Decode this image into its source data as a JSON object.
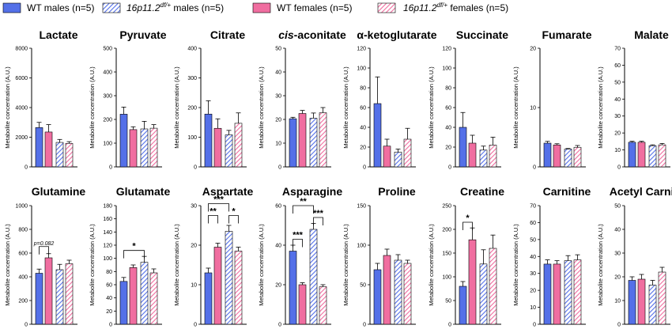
{
  "legend": [
    {
      "label": "WT males (n=5)",
      "italic_part": "",
      "suffix": "",
      "color": "#5470e8",
      "pattern": "solid"
    },
    {
      "label": "16p11.2",
      "sup": "df/+",
      "suffix": " males (n=5)",
      "color": "#5470e8",
      "pattern": "hatch"
    },
    {
      "label": "WT females (n=5)",
      "italic_part": "",
      "suffix": "",
      "color": "#f06ea0",
      "pattern": "solid"
    },
    {
      "label": "16p11.2",
      "sup": "df/+",
      "suffix": " females (n=5)",
      "color": "#f06ea0",
      "pattern": "hatch"
    }
  ],
  "colors": {
    "male": "#5470e8",
    "female": "#f06ea0"
  },
  "ylabel": "Metabolite concentration (A.U.)",
  "chart_data": [
    {
      "type": "bar",
      "title": "Lactate",
      "ylim": [
        0,
        8000
      ],
      "ticks": [
        0,
        2000,
        4000,
        6000,
        8000
      ],
      "values": [
        2650,
        2350,
        1650,
        1580
      ],
      "errors": [
        350,
        500,
        200,
        120
      ],
      "sig": []
    },
    {
      "type": "bar",
      "title": "Pyruvate",
      "ylim": [
        0,
        500
      ],
      "ticks": [
        0,
        100,
        200,
        300,
        400,
        500
      ],
      "values": [
        222,
        157,
        160,
        163
      ],
      "errors": [
        30,
        12,
        32,
        15
      ],
      "sig": []
    },
    {
      "type": "bar",
      "title": "Citrate",
      "ylim": [
        0,
        400
      ],
      "ticks": [
        0,
        100,
        200,
        300,
        400
      ],
      "values": [
        178,
        130,
        108,
        147
      ],
      "errors": [
        45,
        32,
        15,
        35
      ],
      "sig": []
    },
    {
      "type": "bar",
      "title": "cis-aconitate",
      "title_italic": "cis",
      "title_rest": "-aconitate",
      "ylim": [
        0,
        50
      ],
      "ticks": [
        0,
        10,
        20,
        30,
        40,
        50
      ],
      "values": [
        20.3,
        22.5,
        20.5,
        22.8
      ],
      "errors": [
        0.6,
        1.3,
        2.2,
        2.2
      ],
      "sig": []
    },
    {
      "type": "bar",
      "title": "α-ketoglutarate",
      "ylim": [
        0,
        120
      ],
      "ticks": [
        0,
        20,
        40,
        60,
        80,
        100,
        120
      ],
      "values": [
        64,
        21,
        15,
        28
      ],
      "errors": [
        27,
        7,
        3,
        11
      ],
      "sig": []
    },
    {
      "type": "bar",
      "title": "Succinate",
      "ylim": [
        0,
        120
      ],
      "ticks": [
        0,
        20,
        40,
        60,
        80,
        100,
        120
      ],
      "values": [
        40,
        24,
        17,
        22
      ],
      "errors": [
        15,
        8,
        4,
        8
      ],
      "sig": []
    },
    {
      "type": "bar",
      "title": "Fumarate",
      "ylim": [
        0,
        20
      ],
      "ticks": [
        0,
        10,
        20
      ],
      "values": [
        4.0,
        3.7,
        3.0,
        3.3
      ],
      "errors": [
        0.3,
        0.2,
        0.1,
        0.3
      ],
      "sig": []
    },
    {
      "type": "bar",
      "title": "Malate",
      "ylim": [
        0,
        70
      ],
      "ticks": [
        0,
        10,
        20,
        30,
        40,
        50,
        60,
        70
      ],
      "values": [
        14.5,
        14.5,
        12.5,
        13.0
      ],
      "errors": [
        0.6,
        0.6,
        0.5,
        0.8
      ],
      "sig": []
    },
    {
      "type": "bar",
      "title": "Glutamine",
      "ylim": [
        0,
        1000
      ],
      "ticks": [
        0,
        200,
        400,
        600,
        800,
        1000
      ],
      "values": [
        430,
        560,
        460,
        510
      ],
      "errors": [
        35,
        35,
        45,
        30
      ],
      "sig": [
        {
          "a": 0,
          "b": 1,
          "label": "p=0.082",
          "level": 655,
          "note": true
        }
      ]
    },
    {
      "type": "bar",
      "title": "Glutamate",
      "ylim": [
        0,
        180
      ],
      "ticks": [
        0,
        20,
        40,
        60,
        80,
        100,
        120,
        140,
        160,
        180
      ],
      "values": [
        65,
        86,
        94,
        78
      ],
      "errors": [
        6,
        4,
        9,
        6
      ],
      "sig": [
        {
          "a": 0,
          "b": 2,
          "label": "*",
          "level": 112,
          "note": false
        }
      ]
    },
    {
      "type": "bar",
      "title": "Aspartate",
      "ylim": [
        0,
        30
      ],
      "ticks": [
        0,
        10,
        20,
        30
      ],
      "values": [
        13,
        19.5,
        23.5,
        18.5
      ],
      "errors": [
        1.2,
        1.0,
        1.5,
        1.0
      ],
      "sig": [
        {
          "a": 0,
          "b": 1,
          "label": "**",
          "level": 27.5,
          "note": false
        },
        {
          "a": 2,
          "b": 3,
          "label": "*",
          "level": 27.5,
          "note": false
        },
        {
          "a": 0,
          "b": 2,
          "label": "***",
          "level": 30.5,
          "note": false
        }
      ]
    },
    {
      "type": "bar",
      "title": "Asparagine",
      "ylim": [
        0,
        60
      ],
      "ticks": [
        0,
        20,
        40,
        60
      ],
      "values": [
        37,
        20,
        48,
        19
      ],
      "errors": [
        3,
        1,
        3,
        1
      ],
      "sig": [
        {
          "a": 0,
          "b": 1,
          "label": "***",
          "level": 43,
          "note": false
        },
        {
          "a": 2,
          "b": 3,
          "label": "***",
          "level": 54,
          "note": false
        },
        {
          "a": 0,
          "b": 2,
          "label": "**",
          "level": 60,
          "note": false
        }
      ]
    },
    {
      "type": "bar",
      "title": "Proline",
      "ylim": [
        0,
        150
      ],
      "ticks": [
        0,
        50,
        100,
        150
      ],
      "values": [
        69,
        87,
        81,
        77
      ],
      "errors": [
        8,
        8,
        7,
        4
      ],
      "sig": []
    },
    {
      "type": "bar",
      "title": "Creatine",
      "ylim": [
        0,
        250
      ],
      "ticks": [
        0,
        50,
        100,
        150,
        200,
        250
      ],
      "values": [
        80,
        178,
        127,
        160
      ],
      "errors": [
        10,
        25,
        30,
        28
      ],
      "sig": [
        {
          "a": 0,
          "b": 1,
          "label": "*",
          "level": 215,
          "note": false
        }
      ]
    },
    {
      "type": "bar",
      "title": "Carnitine",
      "ylim": [
        0,
        70
      ],
      "ticks": [
        0,
        10,
        20,
        30,
        40,
        50,
        60,
        70
      ],
      "values": [
        35.5,
        35.5,
        37.5,
        38
      ],
      "errors": [
        2.5,
        2,
        3,
        3
      ],
      "sig": []
    },
    {
      "type": "bar",
      "title": "Acetyl Carnitine",
      "ylim": [
        0,
        50
      ],
      "ticks": [
        0,
        10,
        20,
        30,
        40,
        50
      ],
      "values": [
        18.5,
        19,
        16.5,
        22
      ],
      "errors": [
        1.5,
        2,
        2,
        2
      ],
      "sig": []
    }
  ]
}
